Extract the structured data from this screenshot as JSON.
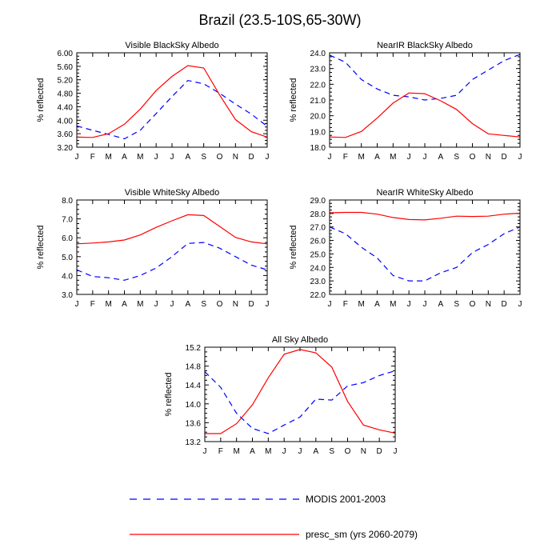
{
  "title": "Brazil (23.5-10S,65-30W)",
  "months": [
    "J",
    "F",
    "M",
    "A",
    "M",
    "J",
    "J",
    "A",
    "S",
    "O",
    "N",
    "D",
    "J"
  ],
  "legend": [
    {
      "label": "MODIS 2001-2003",
      "color": "#0000ff",
      "dash": true
    },
    {
      "label": "presc_sm (yrs 2060-2079)",
      "color": "#ff0000",
      "dash": false
    }
  ],
  "chart_data": [
    {
      "type": "line",
      "title": "Visible BlackSky Albedo",
      "ylabel": "% reflected",
      "ylim": [
        3.2,
        6.0
      ],
      "yticks": [
        "3.20",
        "3.60",
        "4.00",
        "4.40",
        "4.80",
        "5.20",
        "5.60",
        "6.00"
      ],
      "series": [
        {
          "name": "MODIS 2001-2003",
          "values": [
            3.83,
            3.7,
            3.58,
            3.45,
            3.7,
            4.2,
            4.7,
            5.18,
            5.08,
            4.8,
            4.48,
            4.18,
            3.82
          ]
        },
        {
          "name": "presc_sm (yrs 2060-2079)",
          "values": [
            3.5,
            3.49,
            3.6,
            3.88,
            4.33,
            4.88,
            5.3,
            5.62,
            5.55,
            4.75,
            4.02,
            3.66,
            3.5
          ]
        }
      ]
    },
    {
      "type": "line",
      "title": "NearIR BlackSky Albedo",
      "ylabel": "% reflected",
      "ylim": [
        18.0,
        24.0
      ],
      "yticks": [
        "18.0",
        "19.0",
        "20.0",
        "21.0",
        "22.0",
        "23.0",
        "24.0"
      ],
      "series": [
        {
          "name": "MODIS 2001-2003",
          "values": [
            23.85,
            23.4,
            22.3,
            21.7,
            21.3,
            21.2,
            21.0,
            21.1,
            21.3,
            22.3,
            22.9,
            23.5,
            23.9
          ]
        },
        {
          "name": "presc_sm (yrs 2060-2079)",
          "values": [
            18.65,
            18.62,
            19.0,
            19.85,
            20.8,
            21.45,
            21.4,
            20.95,
            20.4,
            19.5,
            18.85,
            18.75,
            18.65
          ]
        }
      ]
    },
    {
      "type": "line",
      "title": "Visible WhiteSky Albedo",
      "ylabel": "% reflected",
      "ylim": [
        3.0,
        8.0
      ],
      "yticks": [
        "3.0",
        "4.0",
        "5.0",
        "6.0",
        "7.0",
        "8.0"
      ],
      "series": [
        {
          "name": "MODIS 2001-2003",
          "values": [
            4.3,
            3.95,
            3.88,
            3.75,
            4.0,
            4.4,
            5.0,
            5.7,
            5.75,
            5.45,
            5.0,
            4.55,
            4.3
          ]
        },
        {
          "name": "presc_sm (yrs 2060-2079)",
          "values": [
            5.68,
            5.72,
            5.78,
            5.88,
            6.15,
            6.55,
            6.9,
            7.22,
            7.18,
            6.6,
            6.02,
            5.78,
            5.68
          ]
        }
      ]
    },
    {
      "type": "line",
      "title": "NearIR WhiteSky Albedo",
      "ylabel": "% reflected",
      "ylim": [
        22.0,
        29.0
      ],
      "yticks": [
        "22.0",
        "23.0",
        "24.0",
        "25.0",
        "26.0",
        "27.0",
        "28.0",
        "29.0"
      ],
      "series": [
        {
          "name": "MODIS 2001-2003",
          "values": [
            27.0,
            26.5,
            25.5,
            24.7,
            23.4,
            23.0,
            23.0,
            23.6,
            24.0,
            25.1,
            25.7,
            26.5,
            27.0
          ]
        },
        {
          "name": "presc_sm (yrs 2060-2079)",
          "values": [
            28.05,
            28.08,
            28.08,
            27.95,
            27.7,
            27.55,
            27.52,
            27.65,
            27.8,
            27.78,
            27.8,
            27.95,
            28.02
          ]
        }
      ]
    },
    {
      "type": "line",
      "title": "All Sky Albedo",
      "ylabel": "% reflected",
      "ylim": [
        13.2,
        15.2
      ],
      "yticks": [
        "13.2",
        "13.6",
        "14.0",
        "14.4",
        "14.8",
        "15.2"
      ],
      "series": [
        {
          "name": "MODIS 2001-2003",
          "values": [
            14.68,
            14.35,
            13.8,
            13.48,
            13.37,
            13.55,
            13.72,
            14.1,
            14.08,
            14.38,
            14.45,
            14.6,
            14.7
          ]
        },
        {
          "name": "presc_sm (yrs 2060-2079)",
          "values": [
            13.37,
            13.37,
            13.58,
            13.98,
            14.55,
            15.05,
            15.15,
            15.08,
            14.78,
            14.05,
            13.55,
            13.45,
            13.38
          ]
        }
      ]
    }
  ]
}
